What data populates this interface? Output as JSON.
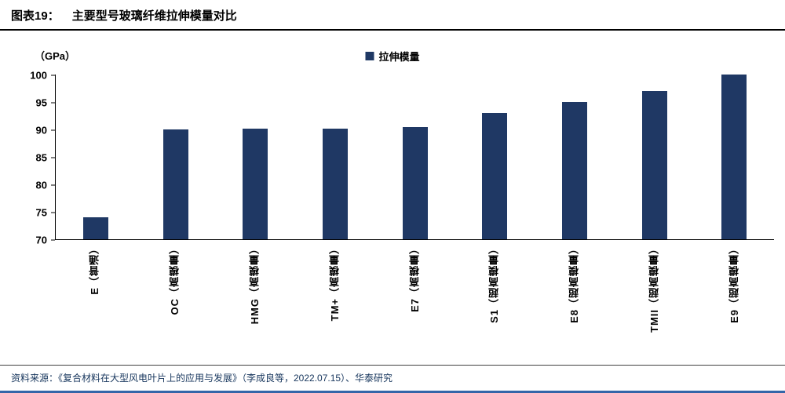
{
  "header": {
    "figure_label": "图表19：",
    "figure_title": "主要型号玻璃纤维拉伸模量对比"
  },
  "chart_data": {
    "type": "bar",
    "title": "主要型号玻璃纤维拉伸模量对比",
    "unit_label": "（GPa）",
    "legend": {
      "label": "拉伸模量",
      "position": "top-center"
    },
    "categories": [
      "E（普通）",
      "OC（高模量）",
      "HMG（高模量）",
      "TM+（高模量）",
      "E7（高模量）",
      "S1（超高模量）",
      "E8（超高模量）",
      "TMII（超高模量）",
      "E9（超高模量）"
    ],
    "values": [
      74,
      90,
      90.2,
      90.2,
      90.5,
      93,
      95,
      97,
      100
    ],
    "ylim": [
      70,
      100
    ],
    "yticks": [
      70,
      75,
      80,
      85,
      90,
      95,
      100
    ],
    "grid": false,
    "bar_color": "#1F3864"
  },
  "footer": {
    "source": "资料来源：《复合材料在大型风电叶片上的应用与发展》（李成良等，2022.07.15）、华泰研究"
  },
  "colors": {
    "bar": "#1F3864",
    "text": "#000000",
    "source_text": "#17365D",
    "divider": "#404040",
    "bottom_rule": "#3465A8"
  }
}
